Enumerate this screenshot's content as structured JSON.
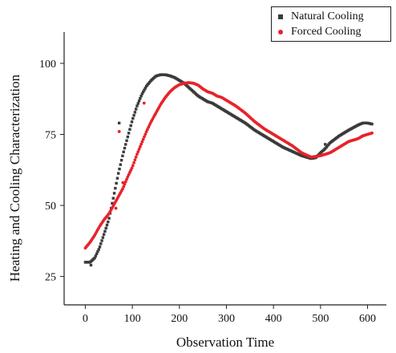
{
  "colors": {
    "natural": "#3b3b3b",
    "forced": "#e8232a"
  },
  "chart_data": {
    "type": "scatter",
    "xlabel": "Observation Time",
    "ylabel": "Heating and Cooling Characterization",
    "xlim": [
      -45,
      640
    ],
    "ylim": [
      15,
      111
    ],
    "xticks": [
      0,
      100,
      200,
      300,
      400,
      500,
      600
    ],
    "yticks": [
      25,
      50,
      75,
      100
    ],
    "legend_position": "top-right",
    "series": [
      {
        "name": "Natural Cooling",
        "color": "#3b3b3b",
        "marker": "square",
        "points": [
          [
            0,
            30
          ],
          [
            10,
            30
          ],
          [
            20,
            31.5
          ],
          [
            30,
            35
          ],
          [
            40,
            40
          ],
          [
            50,
            45
          ],
          [
            60,
            53
          ],
          [
            70,
            61
          ],
          [
            80,
            68
          ],
          [
            90,
            74
          ],
          [
            100,
            80
          ],
          [
            110,
            85
          ],
          [
            120,
            89
          ],
          [
            130,
            92
          ],
          [
            140,
            94
          ],
          [
            150,
            95.5
          ],
          [
            160,
            96
          ],
          [
            170,
            96
          ],
          [
            180,
            95.6
          ],
          [
            190,
            95
          ],
          [
            200,
            94
          ],
          [
            210,
            93
          ],
          [
            220,
            91.5
          ],
          [
            230,
            90
          ],
          [
            240,
            88.5
          ],
          [
            250,
            87.5
          ],
          [
            260,
            86.5
          ],
          [
            270,
            86
          ],
          [
            280,
            85
          ],
          [
            290,
            84
          ],
          [
            300,
            83
          ],
          [
            320,
            81
          ],
          [
            340,
            79
          ],
          [
            360,
            76.5
          ],
          [
            380,
            74.5
          ],
          [
            400,
            72.5
          ],
          [
            420,
            70.5
          ],
          [
            440,
            69
          ],
          [
            460,
            67.5
          ],
          [
            480,
            66.5
          ],
          [
            490,
            66.8
          ],
          [
            500,
            68.5
          ],
          [
            510,
            70
          ],
          [
            520,
            72
          ],
          [
            540,
            74.5
          ],
          [
            560,
            76.5
          ],
          [
            580,
            78.3
          ],
          [
            590,
            79
          ],
          [
            600,
            79
          ],
          [
            610,
            78.6
          ]
        ],
        "outliers": [
          [
            12,
            29
          ],
          [
            72,
            79
          ],
          [
            510,
            71.5
          ]
        ]
      },
      {
        "name": "Forced Cooling",
        "color": "#e8232a",
        "marker": "circle",
        "points": [
          [
            0,
            35
          ],
          [
            10,
            37
          ],
          [
            20,
            39.5
          ],
          [
            30,
            42.5
          ],
          [
            40,
            45
          ],
          [
            50,
            47
          ],
          [
            60,
            50
          ],
          [
            70,
            53
          ],
          [
            80,
            56
          ],
          [
            90,
            60
          ],
          [
            100,
            63.5
          ],
          [
            110,
            68
          ],
          [
            120,
            72
          ],
          [
            130,
            76
          ],
          [
            140,
            79.5
          ],
          [
            150,
            82.5
          ],
          [
            160,
            85.5
          ],
          [
            170,
            88
          ],
          [
            180,
            90
          ],
          [
            190,
            91.5
          ],
          [
            200,
            92.5
          ],
          [
            210,
            93
          ],
          [
            220,
            93.2
          ],
          [
            230,
            93
          ],
          [
            240,
            92.3
          ],
          [
            250,
            91
          ],
          [
            260,
            90
          ],
          [
            270,
            89.5
          ],
          [
            280,
            88.5
          ],
          [
            290,
            88
          ],
          [
            300,
            87
          ],
          [
            320,
            85
          ],
          [
            340,
            82.5
          ],
          [
            360,
            79.5
          ],
          [
            380,
            77
          ],
          [
            400,
            75
          ],
          [
            420,
            73
          ],
          [
            440,
            71
          ],
          [
            460,
            68.5
          ],
          [
            480,
            67
          ],
          [
            500,
            67.5
          ],
          [
            520,
            68.5
          ],
          [
            540,
            70.5
          ],
          [
            560,
            72.5
          ],
          [
            580,
            73.5
          ],
          [
            590,
            74.5
          ],
          [
            600,
            75
          ],
          [
            610,
            75.5
          ]
        ],
        "outliers": [
          [
            65,
            49
          ],
          [
            72,
            76
          ],
          [
            80,
            58
          ],
          [
            125,
            86
          ]
        ]
      }
    ]
  }
}
